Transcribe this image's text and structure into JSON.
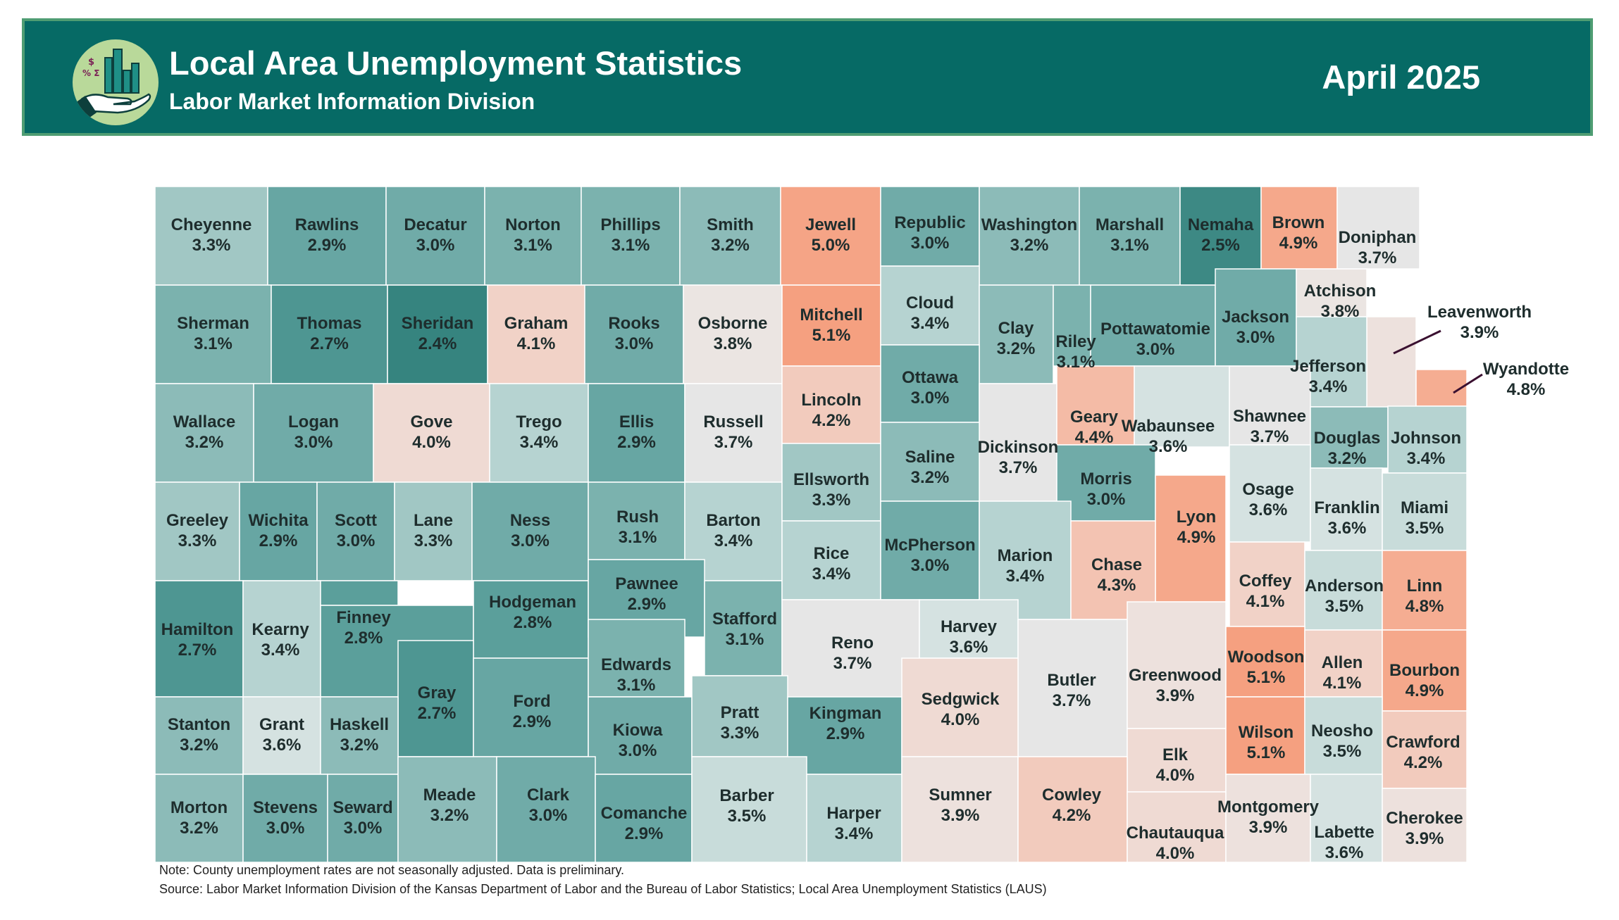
{
  "header": {
    "title": "Local Area Unemployment Statistics",
    "subtitle": "Labor Market Information Division",
    "period": "April 2025",
    "logo_icon": "hand-holding-chart-icon",
    "logo_symbols": "$ % Σ"
  },
  "colors": {
    "banner": "#066a65",
    "banner_border": "#4f9d73",
    "scale": {
      "2.4%": "#36847f",
      "2.5%": "#3d8984",
      "2.7%": "#4e9692",
      "2.8%": "#5b9f9b",
      "2.9%": "#67a6a3",
      "3.0%": "#70aba8",
      "3.1%": "#7bb2ae",
      "3.2%": "#8cbbb8",
      "3.3%": "#a1c7c4",
      "3.4%": "#b6d3d1",
      "3.5%": "#c8dcda",
      "3.6%": "#d5e2e1",
      "3.7%": "#e6e6e6",
      "3.8%": "#ebe5e2",
      "3.9%": "#ede1dd",
      "4.0%": "#efdad3",
      "4.1%": "#f1d2c7",
      "4.2%": "#f2cbbd",
      "4.3%": "#f3c3b2",
      "4.4%": "#f4bba6",
      "4.8%": "#f5ad92",
      "4.9%": "#f5a88b",
      "5.0%": "#f5a486",
      "5.1%": "#f5a080"
    }
  },
  "counties": [
    {
      "name": "Cheyenne",
      "rate": "3.3%"
    },
    {
      "name": "Rawlins",
      "rate": "2.9%"
    },
    {
      "name": "Decatur",
      "rate": "3.0%"
    },
    {
      "name": "Norton",
      "rate": "3.1%"
    },
    {
      "name": "Phillips",
      "rate": "3.1%"
    },
    {
      "name": "Smith",
      "rate": "3.2%"
    },
    {
      "name": "Jewell",
      "rate": "5.0%"
    },
    {
      "name": "Republic",
      "rate": "3.0%"
    },
    {
      "name": "Washington",
      "rate": "3.2%"
    },
    {
      "name": "Marshall",
      "rate": "3.1%"
    },
    {
      "name": "Nemaha",
      "rate": "2.5%"
    },
    {
      "name": "Brown",
      "rate": "4.9%"
    },
    {
      "name": "Doniphan",
      "rate": "3.7%"
    },
    {
      "name": "Sherman",
      "rate": "3.1%"
    },
    {
      "name": "Thomas",
      "rate": "2.7%"
    },
    {
      "name": "Sheridan",
      "rate": "2.4%"
    },
    {
      "name": "Graham",
      "rate": "4.1%"
    },
    {
      "name": "Rooks",
      "rate": "3.0%"
    },
    {
      "name": "Osborne",
      "rate": "3.8%"
    },
    {
      "name": "Mitchell",
      "rate": "5.1%"
    },
    {
      "name": "Cloud",
      "rate": "3.4%"
    },
    {
      "name": "Clay",
      "rate": "3.2%"
    },
    {
      "name": "Riley",
      "rate": "3.1%"
    },
    {
      "name": "Pottawatomie",
      "rate": "3.0%"
    },
    {
      "name": "Jackson",
      "rate": "3.0%"
    },
    {
      "name": "Atchison",
      "rate": "3.8%"
    },
    {
      "name": "Leavenworth",
      "rate": "3.9%"
    },
    {
      "name": "Jefferson",
      "rate": "3.4%"
    },
    {
      "name": "Wyandotte",
      "rate": "4.8%"
    },
    {
      "name": "Wallace",
      "rate": "3.2%"
    },
    {
      "name": "Logan",
      "rate": "3.0%"
    },
    {
      "name": "Gove",
      "rate": "4.0%"
    },
    {
      "name": "Trego",
      "rate": "3.4%"
    },
    {
      "name": "Ellis",
      "rate": "2.9%"
    },
    {
      "name": "Russell",
      "rate": "3.7%"
    },
    {
      "name": "Lincoln",
      "rate": "4.2%"
    },
    {
      "name": "Ottawa",
      "rate": "3.0%"
    },
    {
      "name": "Dickinson",
      "rate": "3.7%"
    },
    {
      "name": "Geary",
      "rate": "4.4%"
    },
    {
      "name": "Wabaunsee",
      "rate": "3.6%"
    },
    {
      "name": "Shawnee",
      "rate": "3.7%"
    },
    {
      "name": "Douglas",
      "rate": "3.2%"
    },
    {
      "name": "Johnson",
      "rate": "3.4%"
    },
    {
      "name": "Greeley",
      "rate": "3.3%"
    },
    {
      "name": "Wichita",
      "rate": "2.9%"
    },
    {
      "name": "Scott",
      "rate": "3.0%"
    },
    {
      "name": "Lane",
      "rate": "3.3%"
    },
    {
      "name": "Ness",
      "rate": "3.0%"
    },
    {
      "name": "Rush",
      "rate": "3.1%"
    },
    {
      "name": "Barton",
      "rate": "3.4%"
    },
    {
      "name": "Ellsworth",
      "rate": "3.3%"
    },
    {
      "name": "Saline",
      "rate": "3.2%"
    },
    {
      "name": "Morris",
      "rate": "3.0%"
    },
    {
      "name": "Lyon",
      "rate": "4.9%"
    },
    {
      "name": "Osage",
      "rate": "3.6%"
    },
    {
      "name": "Franklin",
      "rate": "3.6%"
    },
    {
      "name": "Miami",
      "rate": "3.5%"
    },
    {
      "name": "Hamilton",
      "rate": "2.7%"
    },
    {
      "name": "Kearny",
      "rate": "3.4%"
    },
    {
      "name": "Finney",
      "rate": "2.8%"
    },
    {
      "name": "Hodgeman",
      "rate": "2.8%"
    },
    {
      "name": "Pawnee",
      "rate": "2.9%"
    },
    {
      "name": "Stafford",
      "rate": "3.1%"
    },
    {
      "name": "Rice",
      "rate": "3.4%"
    },
    {
      "name": "McPherson",
      "rate": "3.0%"
    },
    {
      "name": "Marion",
      "rate": "3.4%"
    },
    {
      "name": "Chase",
      "rate": "4.3%"
    },
    {
      "name": "Coffey",
      "rate": "4.1%"
    },
    {
      "name": "Anderson",
      "rate": "3.5%"
    },
    {
      "name": "Linn",
      "rate": "4.8%"
    },
    {
      "name": "Gray",
      "rate": "2.7%"
    },
    {
      "name": "Ford",
      "rate": "2.9%"
    },
    {
      "name": "Edwards",
      "rate": "3.1%"
    },
    {
      "name": "Reno",
      "rate": "3.7%"
    },
    {
      "name": "Harvey",
      "rate": "3.6%"
    },
    {
      "name": "Butler",
      "rate": "3.7%"
    },
    {
      "name": "Greenwood",
      "rate": "3.9%"
    },
    {
      "name": "Woodson",
      "rate": "5.1%"
    },
    {
      "name": "Allen",
      "rate": "4.1%"
    },
    {
      "name": "Bourbon",
      "rate": "4.9%"
    },
    {
      "name": "Stanton",
      "rate": "3.2%"
    },
    {
      "name": "Grant",
      "rate": "3.6%"
    },
    {
      "name": "Haskell",
      "rate": "3.2%"
    },
    {
      "name": "Kiowa",
      "rate": "3.0%"
    },
    {
      "name": "Pratt",
      "rate": "3.3%"
    },
    {
      "name": "Kingman",
      "rate": "2.9%"
    },
    {
      "name": "Sedgwick",
      "rate": "4.0%"
    },
    {
      "name": "Elk",
      "rate": "4.0%"
    },
    {
      "name": "Wilson",
      "rate": "5.1%"
    },
    {
      "name": "Neosho",
      "rate": "3.5%"
    },
    {
      "name": "Crawford",
      "rate": "4.2%"
    },
    {
      "name": "Morton",
      "rate": "3.2%"
    },
    {
      "name": "Stevens",
      "rate": "3.0%"
    },
    {
      "name": "Seward",
      "rate": "3.0%"
    },
    {
      "name": "Meade",
      "rate": "3.2%"
    },
    {
      "name": "Clark",
      "rate": "3.0%"
    },
    {
      "name": "Comanche",
      "rate": "2.9%"
    },
    {
      "name": "Barber",
      "rate": "3.5%"
    },
    {
      "name": "Harper",
      "rate": "3.4%"
    },
    {
      "name": "Sumner",
      "rate": "3.9%"
    },
    {
      "name": "Cowley",
      "rate": "4.2%"
    },
    {
      "name": "Chautauqua",
      "rate": "4.0%"
    },
    {
      "name": "Montgomery",
      "rate": "3.9%"
    },
    {
      "name": "Labette",
      "rate": "3.6%"
    },
    {
      "name": "Cherokee",
      "rate": "3.9%"
    }
  ],
  "footer": {
    "note": "Note: County unemployment rates are not seasonally adjusted. Data is preliminary.",
    "source": "Source: Labor Market Information Division of the Kansas Department of Labor and the Bureau of Labor Statistics; Local Area Unemployment Statistics (LAUS)"
  }
}
